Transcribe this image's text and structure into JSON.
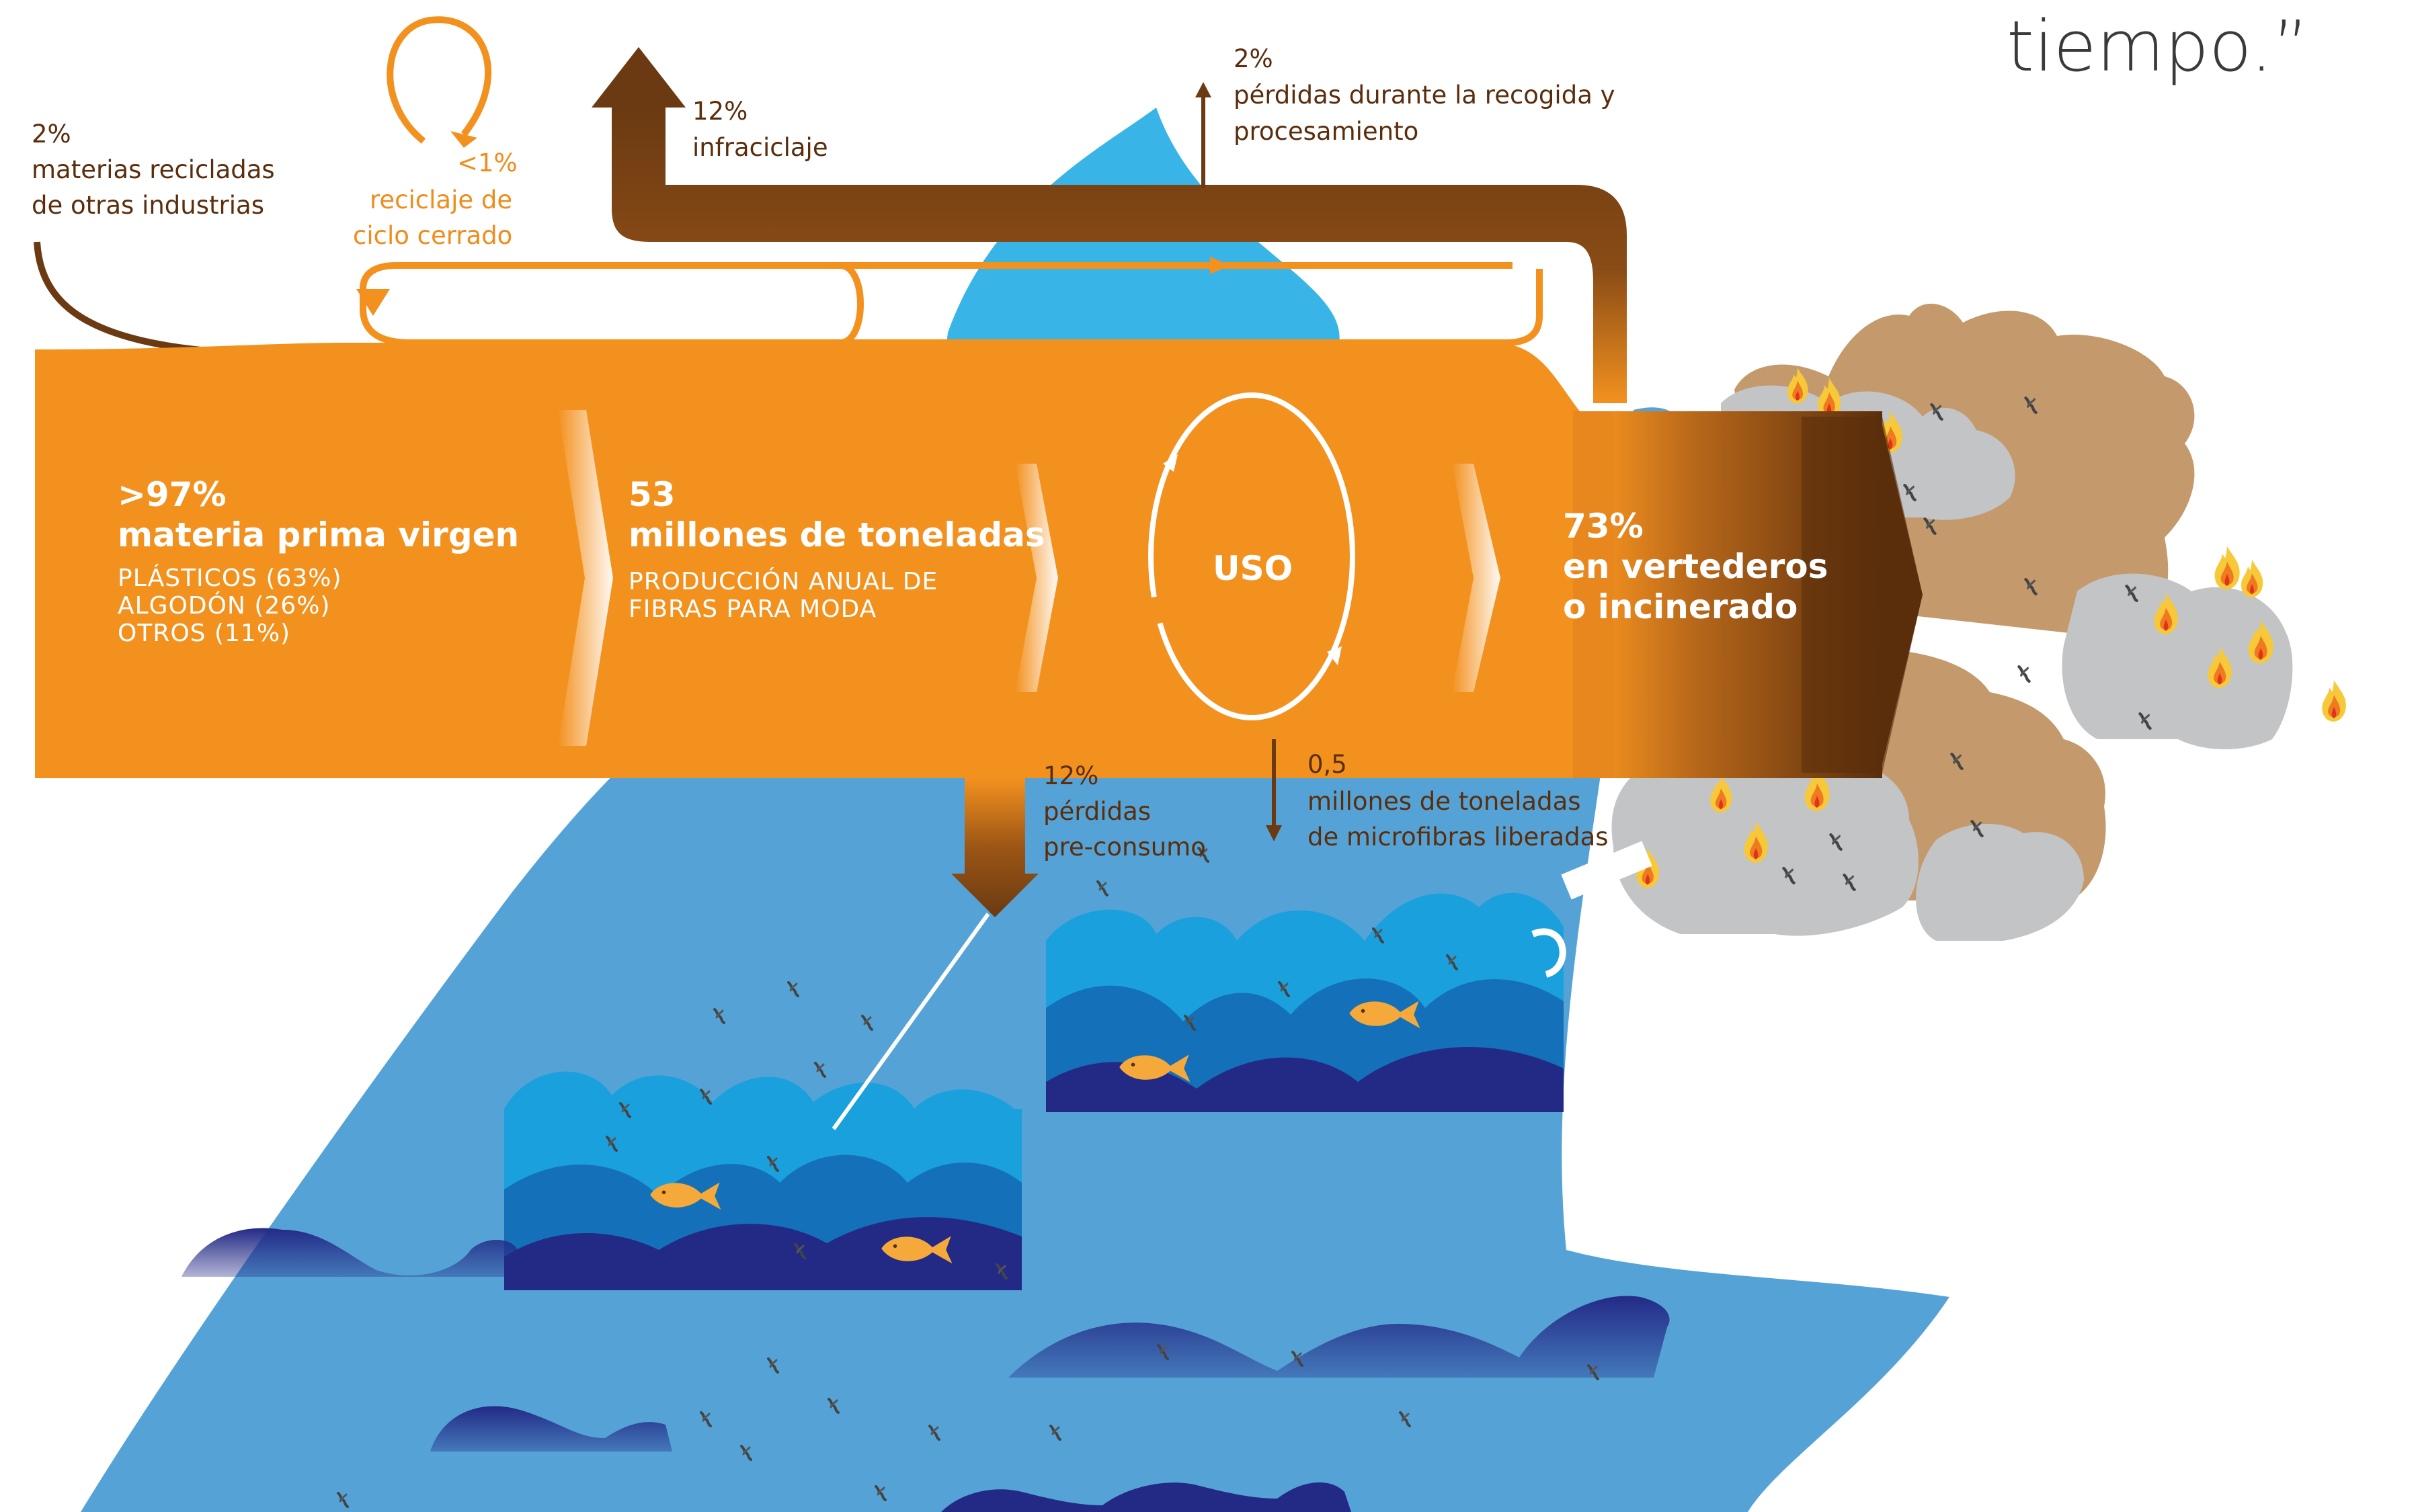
{
  "quote_tail": "tiempo.”",
  "inputs": {
    "recycled_other_industries": {
      "percent": "2%",
      "line1": "materias recicladas",
      "line2": "de otras industrias"
    },
    "closed_loop": {
      "percent": "<1%",
      "line1": "reciclaje de",
      "line2": "ciclo cerrado"
    },
    "cascaded": {
      "percent": "12%",
      "label": "infraciclaje"
    },
    "collection_losses": {
      "percent": "2%",
      "line1": "pérdidas durante la recogida y",
      "line2": "procesamiento"
    }
  },
  "flow": {
    "virgin": {
      "percent": ">97%",
      "title": "materia prima virgen",
      "items": [
        "PLÁSTICOS (63%)",
        "ALGODÓN (26%)",
        "OTROS (11%)"
      ]
    },
    "production": {
      "value": "53",
      "title": "millones de toneladas",
      "line1": "PRODUCCIÓN ANUAL DE",
      "line2": "FIBRAS PARA MODA"
    },
    "use": {
      "label": "USO"
    },
    "landfill": {
      "percent": "73%",
      "line1": "en vertederos",
      "line2": "o incinerado"
    }
  },
  "outputs": {
    "pre_consumer": {
      "percent": "12%",
      "line1": "pérdidas",
      "line2": "pre-consumo"
    },
    "microfibers": {
      "value": "0,5",
      "line1": "millones de toneladas",
      "line2": "de microfibras liberadas"
    }
  },
  "colors": {
    "orange": "#f3911f",
    "brown": "#6b3a12",
    "sky_blue": "#38b5e6",
    "ocean_blue": "#55a3d6",
    "wave_dark": "#232a86",
    "pile_brown": "#c49a6c",
    "pile_grey": "#c3c4c6"
  }
}
